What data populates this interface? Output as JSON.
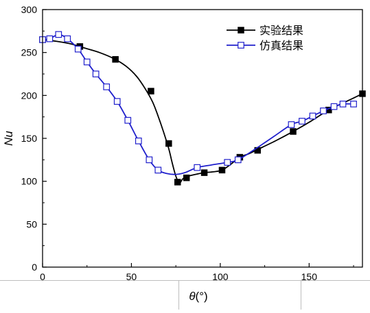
{
  "chart_data": {
    "type": "line",
    "xlabel_symbol": "θ",
    "xlabel_unit": "(°)",
    "ylabel": "Nu",
    "xlim": [
      0,
      180
    ],
    "ylim": [
      0,
      300
    ],
    "x_ticks": [
      0,
      50,
      100,
      150
    ],
    "y_ticks": [
      0,
      50,
      100,
      150,
      200,
      250,
      300
    ],
    "grid": false,
    "legend_position": "top-right",
    "series": [
      {
        "name": "实验结果",
        "color": "#000000",
        "marker": "filled-square",
        "x": [
          0,
          21,
          41,
          61,
          71,
          76,
          81,
          91,
          101,
          111,
          121,
          141,
          161,
          180
        ],
        "y": [
          265,
          257,
          242,
          205,
          144,
          99,
          104,
          110,
          113,
          128,
          136,
          158,
          183,
          202
        ],
        "curve_x": [
          0,
          8,
          16,
          24,
          32,
          40,
          47,
          53,
          58,
          62,
          65,
          68,
          71,
          73,
          75,
          77,
          79,
          82,
          86,
          91,
          96,
          101,
          106,
          111,
          116,
          121,
          131,
          141,
          151,
          161,
          171,
          180
        ],
        "curve_y": [
          265,
          263,
          260,
          255,
          250,
          243,
          234,
          222,
          207,
          192,
          176,
          158,
          138,
          121,
          106,
          98,
          103,
          106,
          108,
          110,
          111,
          113,
          120,
          128,
          132,
          137,
          147,
          158,
          170,
          183,
          193,
          202
        ]
      },
      {
        "name": "仿真结果",
        "color": "#1f1fcc",
        "marker": "open-square",
        "x": [
          0,
          4,
          9,
          14,
          20,
          25,
          30,
          36,
          42,
          48,
          54,
          60,
          65,
          87,
          104,
          110,
          140,
          146,
          152,
          158,
          164,
          169,
          175
        ],
        "y": [
          265,
          266,
          271,
          266,
          254,
          239,
          225,
          210,
          193,
          171,
          147,
          125,
          113,
          116,
          122,
          125,
          166,
          170,
          176,
          182,
          187,
          190,
          190
        ],
        "curve_x": [
          0,
          4,
          9,
          14,
          20,
          25,
          30,
          36,
          42,
          48,
          54,
          60,
          65,
          70,
          75,
          80,
          87,
          95,
          104,
          110,
          120,
          130,
          140,
          146,
          152,
          158,
          164,
          169,
          175
        ],
        "curve_y": [
          265,
          266,
          271,
          266,
          254,
          239,
          225,
          210,
          193,
          171,
          147,
          125,
          113,
          109,
          108,
          110,
          116,
          119,
          122,
          125,
          138,
          152,
          166,
          170,
          176,
          182,
          187,
          190,
          190
        ]
      }
    ]
  }
}
